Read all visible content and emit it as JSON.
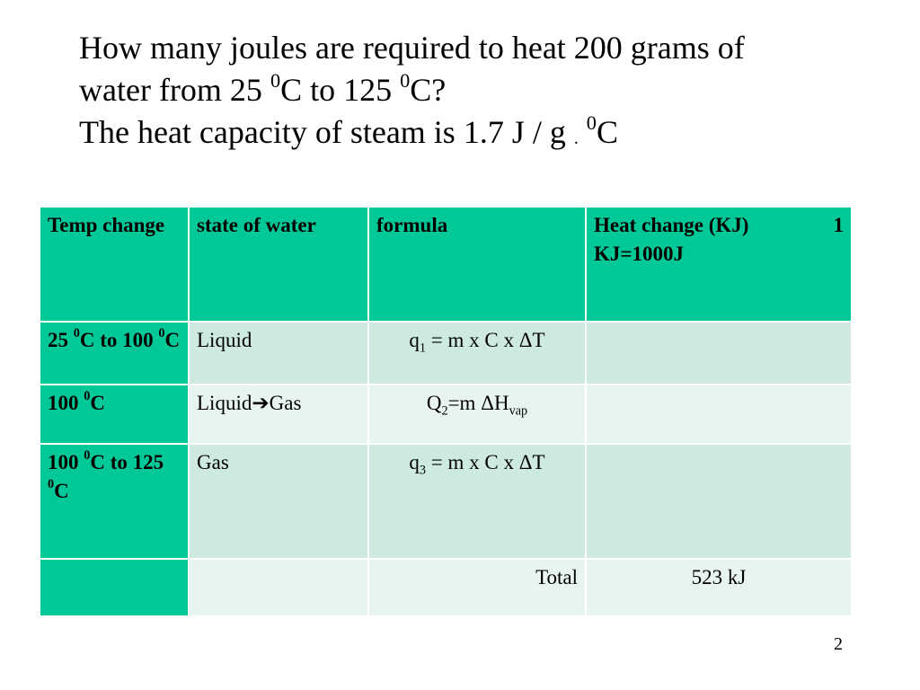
{
  "title": {
    "line1": "How many joules are required to heat 200 grams of",
    "line2": {
      "a": "water from 25 ",
      "sup1": "0",
      "b": "C to 125 ",
      "sup2": "0",
      "c": "C?"
    },
    "line3": {
      "a": "The heat capacity of steam is 1.7 J / g ",
      "dot": ".",
      "sup": "0",
      "b": "C"
    }
  },
  "table": {
    "headers": {
      "temp_change": "Temp change",
      "state": "state of water",
      "formula": "formula",
      "heat_change": "Heat change (KJ)",
      "heat_note_num": "1",
      "heat_note": "KJ=1000J"
    },
    "rows": [
      {
        "temp": {
          "a": "25 ",
          "s1": "0",
          "b": "C to 100 ",
          "s2": "0",
          "c": "C"
        },
        "state": "Liquid",
        "formula": {
          "a": "q",
          "sub": "1",
          "b": " = m x C x ",
          "delta": "Δ",
          "c": "T"
        }
      },
      {
        "temp": {
          "a": "100 ",
          "s1": "0",
          "b": "C"
        },
        "state": {
          "a": "Liquid",
          "arrow": "➔",
          "b": "Gas"
        },
        "formula": {
          "a": "Q",
          "sub1": "2",
          "b": "=m ",
          "delta": "Δ",
          "c": "H",
          "sub2": "vap"
        }
      },
      {
        "temp": {
          "a": "100 ",
          "s1": "0",
          "b": "C to 125 ",
          "s2": "0",
          "c": "C"
        },
        "state": "Gas",
        "formula": {
          "a": "q",
          "sub": "3",
          "b": " = m x C x ",
          "delta": "Δ",
          "c": "T"
        }
      }
    ],
    "total_label": "Total",
    "total_value": "523 kJ"
  },
  "page_number": "2"
}
